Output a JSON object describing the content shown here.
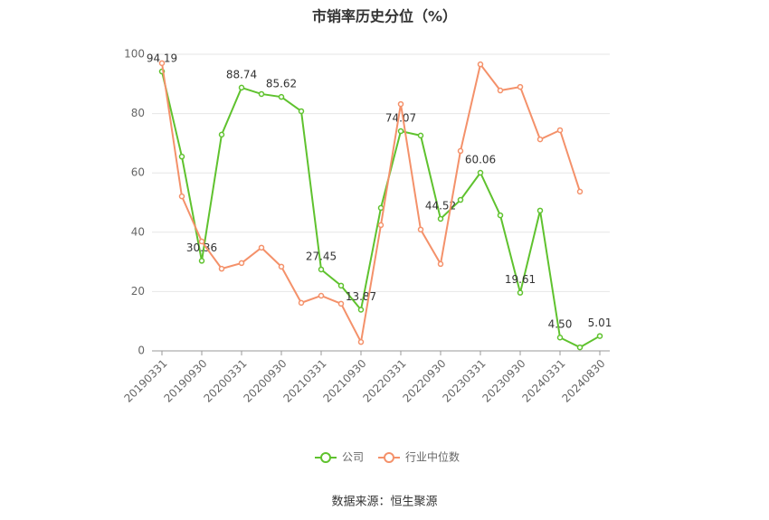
{
  "chart_data": {
    "type": "line",
    "title": "市销率历史分位（%）",
    "source": "数据来源：恒生聚源",
    "categories": [
      "20190331",
      null,
      "20190930",
      null,
      "20200331",
      null,
      "20200930",
      null,
      "20210331",
      null,
      "20210930",
      null,
      "20220331",
      null,
      "20220930",
      null,
      "20230331",
      null,
      "20230930",
      null,
      "20240331",
      null,
      "20240830"
    ],
    "series": [
      {
        "name": "公司",
        "color": "#5fc22e",
        "values": [
          94.19,
          65.5,
          30.36,
          72.9,
          88.74,
          86.6,
          85.62,
          80.8,
          27.45,
          22.0,
          13.87,
          48.2,
          74.07,
          72.6,
          44.52,
          50.9,
          60.06,
          45.7,
          19.61,
          47.3,
          4.5,
          1.2,
          5.01
        ],
        "value_labels": [
          "94.19",
          null,
          "30.36",
          null,
          "88.74",
          null,
          "85.62",
          null,
          "27.45",
          null,
          "13.87",
          null,
          "74.07",
          null,
          "44.52",
          null,
          "60.06",
          null,
          "19.61",
          null,
          "4.50",
          null,
          "5.01"
        ]
      },
      {
        "name": "行业中位数",
        "color": "#f4916a",
        "values": [
          97.0,
          52.1,
          36.9,
          27.7,
          29.6,
          34.8,
          28.4,
          16.2,
          18.6,
          15.9,
          3.0,
          42.4,
          83.2,
          40.9,
          29.3,
          67.4,
          96.6,
          87.8,
          89.0,
          71.3,
          74.4,
          53.7,
          null
        ]
      }
    ],
    "ylim": [
      0,
      100
    ],
    "yticks": [
      0,
      20,
      40,
      60,
      80,
      100
    ],
    "grid": true,
    "legend": "bottom"
  }
}
